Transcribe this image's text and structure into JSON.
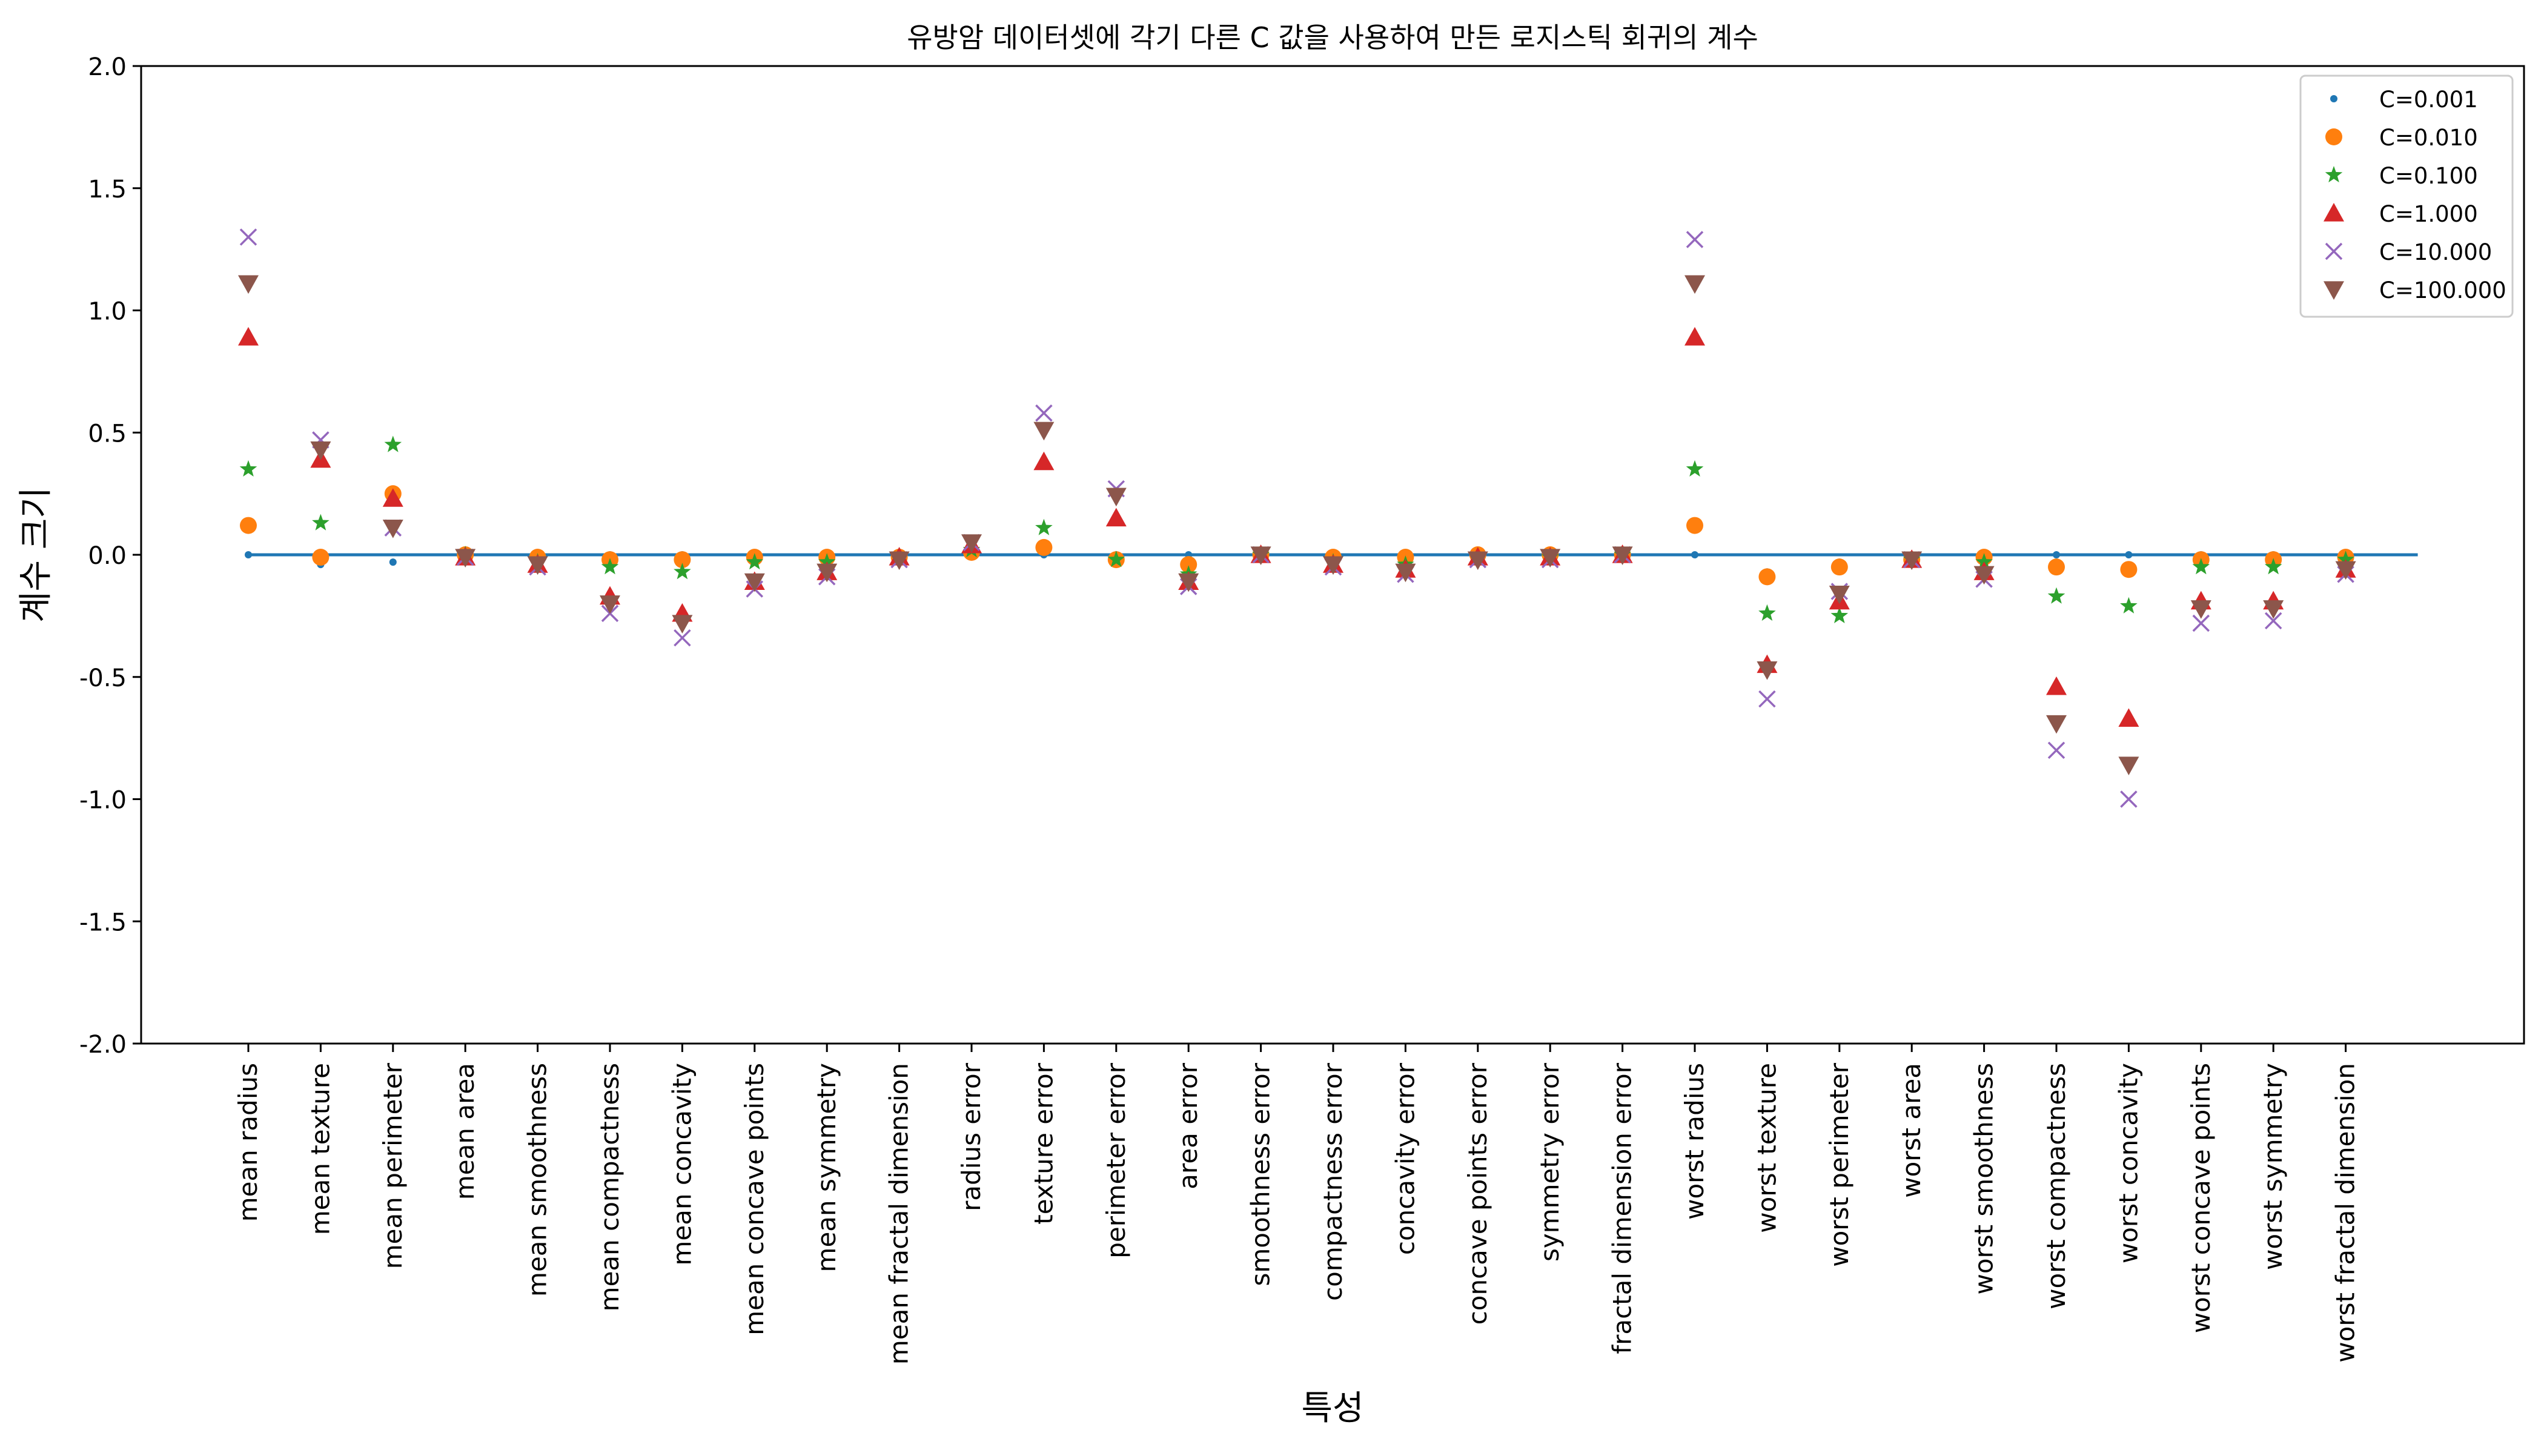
{
  "chart_data": {
    "type": "scatter",
    "title": "유방암 데이터셋에 각기 다른 C 값을 사용하여 만든 로지스틱 회귀의 계수",
    "xlabel": "특성",
    "ylabel": "계수 크기",
    "ylim": [
      -2.0,
      2.0
    ],
    "yticks": [
      2.0,
      1.5,
      1.0,
      0.5,
      0.0,
      -0.5,
      -1.0,
      -1.5,
      -2.0
    ],
    "ytick_labels": [
      "2.0",
      "1.5",
      "1.0",
      "0.5",
      "0.0",
      "-0.5",
      "-1.0",
      "-1.5",
      "-2.0"
    ],
    "grid": false,
    "legend_position": "top-right",
    "zero_line_color": "#1f77b4",
    "categories": [
      "mean radius",
      "mean texture",
      "mean perimeter",
      "mean area",
      "mean smoothness",
      "mean compactness",
      "mean concavity",
      "mean concave points",
      "mean symmetry",
      "mean fractal dimension",
      "radius error",
      "texture error",
      "perimeter error",
      "area error",
      "smoothness error",
      "compactness error",
      "concavity error",
      "concave points error",
      "symmetry error",
      "fractal dimension error",
      "worst radius",
      "worst texture",
      "worst perimeter",
      "worst area",
      "worst smoothness",
      "worst compactness",
      "worst concavity",
      "worst concave points",
      "worst symmetry",
      "worst fractal dimension"
    ],
    "series": [
      {
        "name": "C=0.001",
        "marker": "dot",
        "color": "#1f77b4",
        "values": [
          0.0,
          -0.04,
          -0.03,
          0.0,
          0.0,
          0.0,
          0.0,
          0.0,
          0.0,
          0.0,
          0.0,
          0.0,
          0.0,
          0.0,
          0.0,
          0.0,
          0.0,
          0.0,
          0.0,
          0.0,
          0.0,
          -0.07,
          -0.03,
          0.0,
          0.0,
          0.0,
          0.0,
          0.0,
          0.0,
          0.0
        ]
      },
      {
        "name": "C=0.010",
        "marker": "circle",
        "color": "#ff7f0e",
        "values": [
          0.12,
          -0.01,
          0.25,
          0.0,
          -0.01,
          -0.02,
          -0.02,
          -0.01,
          -0.01,
          -0.01,
          0.01,
          0.03,
          -0.02,
          -0.04,
          0.0,
          -0.01,
          -0.01,
          0.0,
          0.0,
          0.0,
          0.12,
          -0.09,
          -0.05,
          -0.02,
          -0.01,
          -0.05,
          -0.06,
          -0.02,
          -0.02,
          -0.01
        ]
      },
      {
        "name": "C=0.100",
        "marker": "star",
        "color": "#2ca02c",
        "values": [
          0.35,
          0.13,
          0.45,
          0.0,
          -0.03,
          -0.05,
          -0.07,
          -0.03,
          -0.03,
          -0.01,
          0.02,
          0.11,
          -0.02,
          -0.08,
          0.0,
          -0.03,
          -0.04,
          -0.01,
          -0.01,
          0.0,
          0.35,
          -0.24,
          -0.25,
          -0.02,
          -0.03,
          -0.17,
          -0.21,
          -0.05,
          -0.05,
          -0.02
        ]
      },
      {
        "name": "C=1.000",
        "marker": "triangle-up",
        "color": "#d62728",
        "values": [
          0.89,
          0.39,
          0.23,
          -0.01,
          -0.04,
          -0.17,
          -0.24,
          -0.11,
          -0.07,
          -0.01,
          0.04,
          0.38,
          0.15,
          -0.11,
          0.0,
          -0.04,
          -0.06,
          -0.01,
          -0.01,
          0.0,
          0.89,
          -0.45,
          -0.19,
          -0.02,
          -0.07,
          -0.54,
          -0.67,
          -0.19,
          -0.19,
          -0.06
        ]
      },
      {
        "name": "C=10.000",
        "marker": "x",
        "color": "#9467bd",
        "values": [
          1.3,
          0.47,
          0.11,
          -0.01,
          -0.05,
          -0.24,
          -0.34,
          -0.14,
          -0.09,
          -0.02,
          0.05,
          0.58,
          0.27,
          -0.13,
          0.0,
          -0.05,
          -0.08,
          -0.02,
          -0.02,
          0.0,
          1.29,
          -0.59,
          -0.15,
          -0.02,
          -0.1,
          -0.8,
          -1.0,
          -0.28,
          -0.27,
          -0.08
        ]
      },
      {
        "name": "C=100.000",
        "marker": "triangle-down",
        "color": "#8c564b",
        "values": [
          1.11,
          0.43,
          0.11,
          -0.01,
          -0.04,
          -0.2,
          -0.28,
          -0.11,
          -0.07,
          -0.02,
          0.05,
          0.51,
          0.24,
          -0.11,
          0.0,
          -0.04,
          -0.07,
          -0.02,
          -0.01,
          0.0,
          1.11,
          -0.47,
          -0.16,
          -0.02,
          -0.08,
          -0.69,
          -0.86,
          -0.22,
          -0.22,
          -0.06
        ]
      }
    ]
  }
}
